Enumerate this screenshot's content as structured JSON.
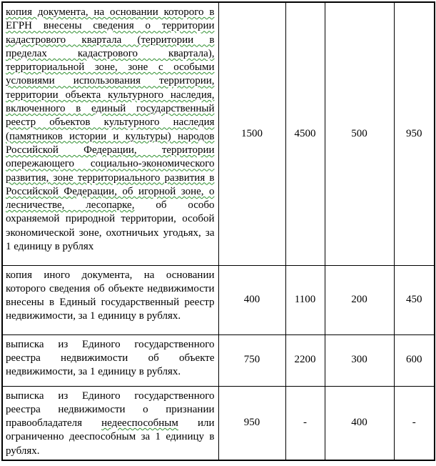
{
  "document": {
    "language": "ru",
    "colors": {
      "spellcheck_underline": "#2f8f2f",
      "table_border": "#000000",
      "text": "#000000",
      "background": "#ffffff"
    },
    "table": {
      "rows": [
        {
          "segments": [
            {
              "text": "копия документа, на основании которого в ЕГРН внесены сведения о территории кадастрового квартала (территории в пределах кадастрового квартала), территориальной зоне, зоне с особыми условиями использования территории, территории объекта культурного наследия, включенного в единый государственный реестр объектов культурного наследия (памятников истории и культуры) народов Российской Федерации, территории опережающего социально-экономического развития, зоне территориального развития в Российской Федерации, об игорной зоне, о лесничестве, лесопарке,",
              "wavy": true
            },
            {
              "text": " об особо охраняемой природной территории, особой экономической зоне, охотничьих угодьях, за 1 единицу в рублях",
              "wavy": false
            }
          ],
          "values": [
            "1500",
            "4500",
            "500",
            "950"
          ]
        },
        {
          "segments": [
            {
              "text": "копия иного документа, на основании которого сведения об объекте недвижимости внесены в Единый государственный реестр недвижимости, за 1 единицу в рублях.",
              "wavy": false
            }
          ],
          "values": [
            "400",
            "1100",
            "200",
            "450"
          ]
        },
        {
          "segments": [
            {
              "text": "выписка из Единого государственного реестра недвижимости об объекте недвижимости, за 1 единицу в рублях.",
              "wavy": false
            }
          ],
          "values": [
            "750",
            "2200",
            "300",
            "600"
          ]
        },
        {
          "segments": [
            {
              "text": "выписка из Единого государственного реестра недвижимости о признании правообладателя ",
              "wavy": false
            },
            {
              "text": "недееспособным",
              "wavy": true
            },
            {
              "text": " или ограниченно дееспособным за 1 единицу в рублях.",
              "wavy": false
            }
          ],
          "values": [
            "950",
            "-",
            "400",
            "-"
          ]
        }
      ]
    }
  }
}
